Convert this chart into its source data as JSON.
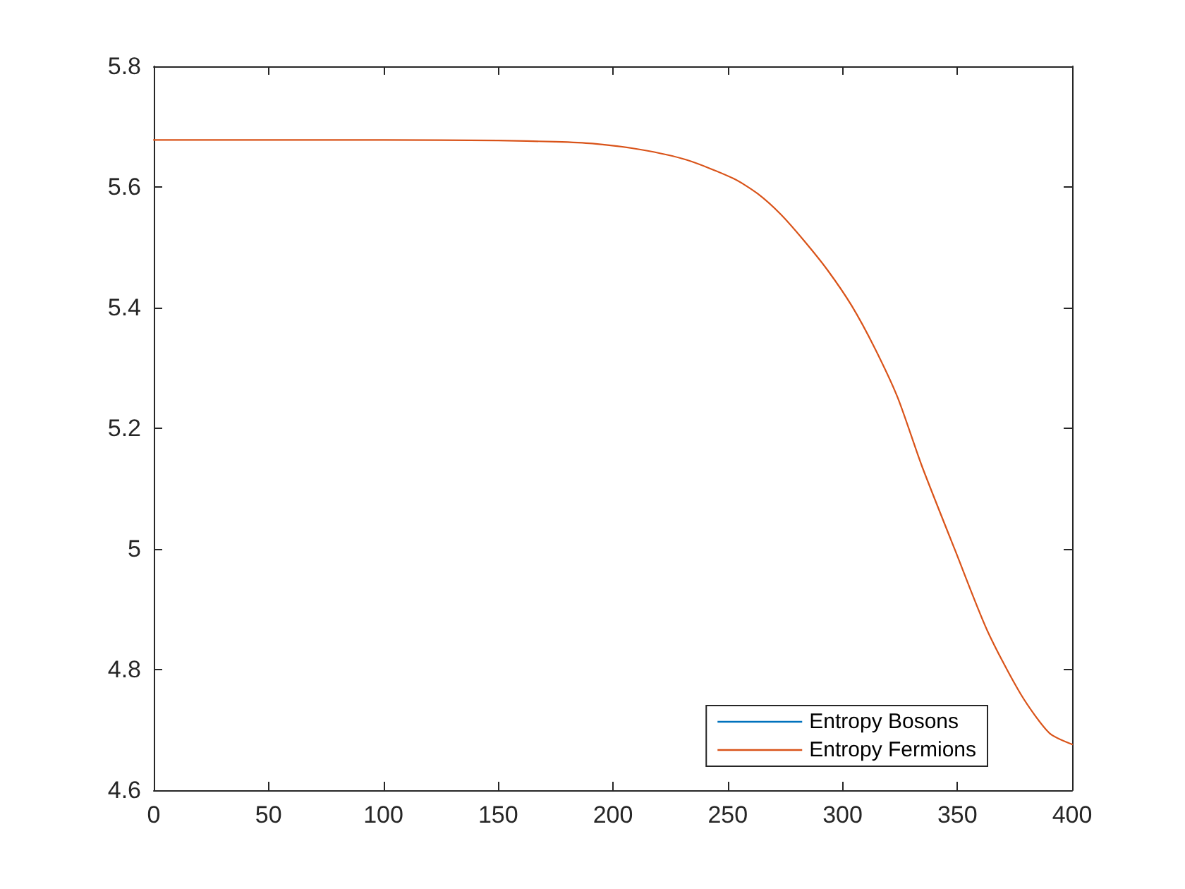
{
  "chart_data": {
    "type": "line",
    "x": [
      0,
      50,
      100,
      150,
      175,
      191,
      212,
      232,
      252.5,
      263,
      273,
      283,
      293.5,
      304,
      314,
      324,
      334.5,
      349,
      363,
      377.5,
      390,
      400
    ],
    "series": [
      {
        "name": "Entropy Bosons",
        "color": "#0072bd",
        "values": [
          null,
          null,
          null,
          null,
          null,
          null,
          null,
          null,
          null,
          null,
          null,
          null,
          null,
          null,
          null,
          null,
          null,
          null,
          null,
          null,
          null,
          null
        ]
      },
      {
        "name": "Entropy Fermions",
        "color": "#d95319",
        "values": [
          5.678,
          5.678,
          5.678,
          5.677,
          5.675,
          5.672,
          5.662,
          5.645,
          5.614,
          5.589,
          5.555,
          5.512,
          5.462,
          5.403,
          5.333,
          5.251,
          5.138,
          4.998,
          4.865,
          4.76,
          4.695,
          4.676
        ]
      }
    ],
    "xlim": [
      0,
      400
    ],
    "xticks": [
      0,
      50,
      100,
      150,
      200,
      250,
      300,
      350,
      400
    ],
    "ylim": [
      4.6,
      5.8
    ],
    "yticks": [
      4.6,
      4.8,
      5,
      5.2,
      5.4,
      5.6,
      5.8
    ],
    "grid": false,
    "legend": "bottom right",
    "marker": "none",
    "line_style": "solid"
  }
}
